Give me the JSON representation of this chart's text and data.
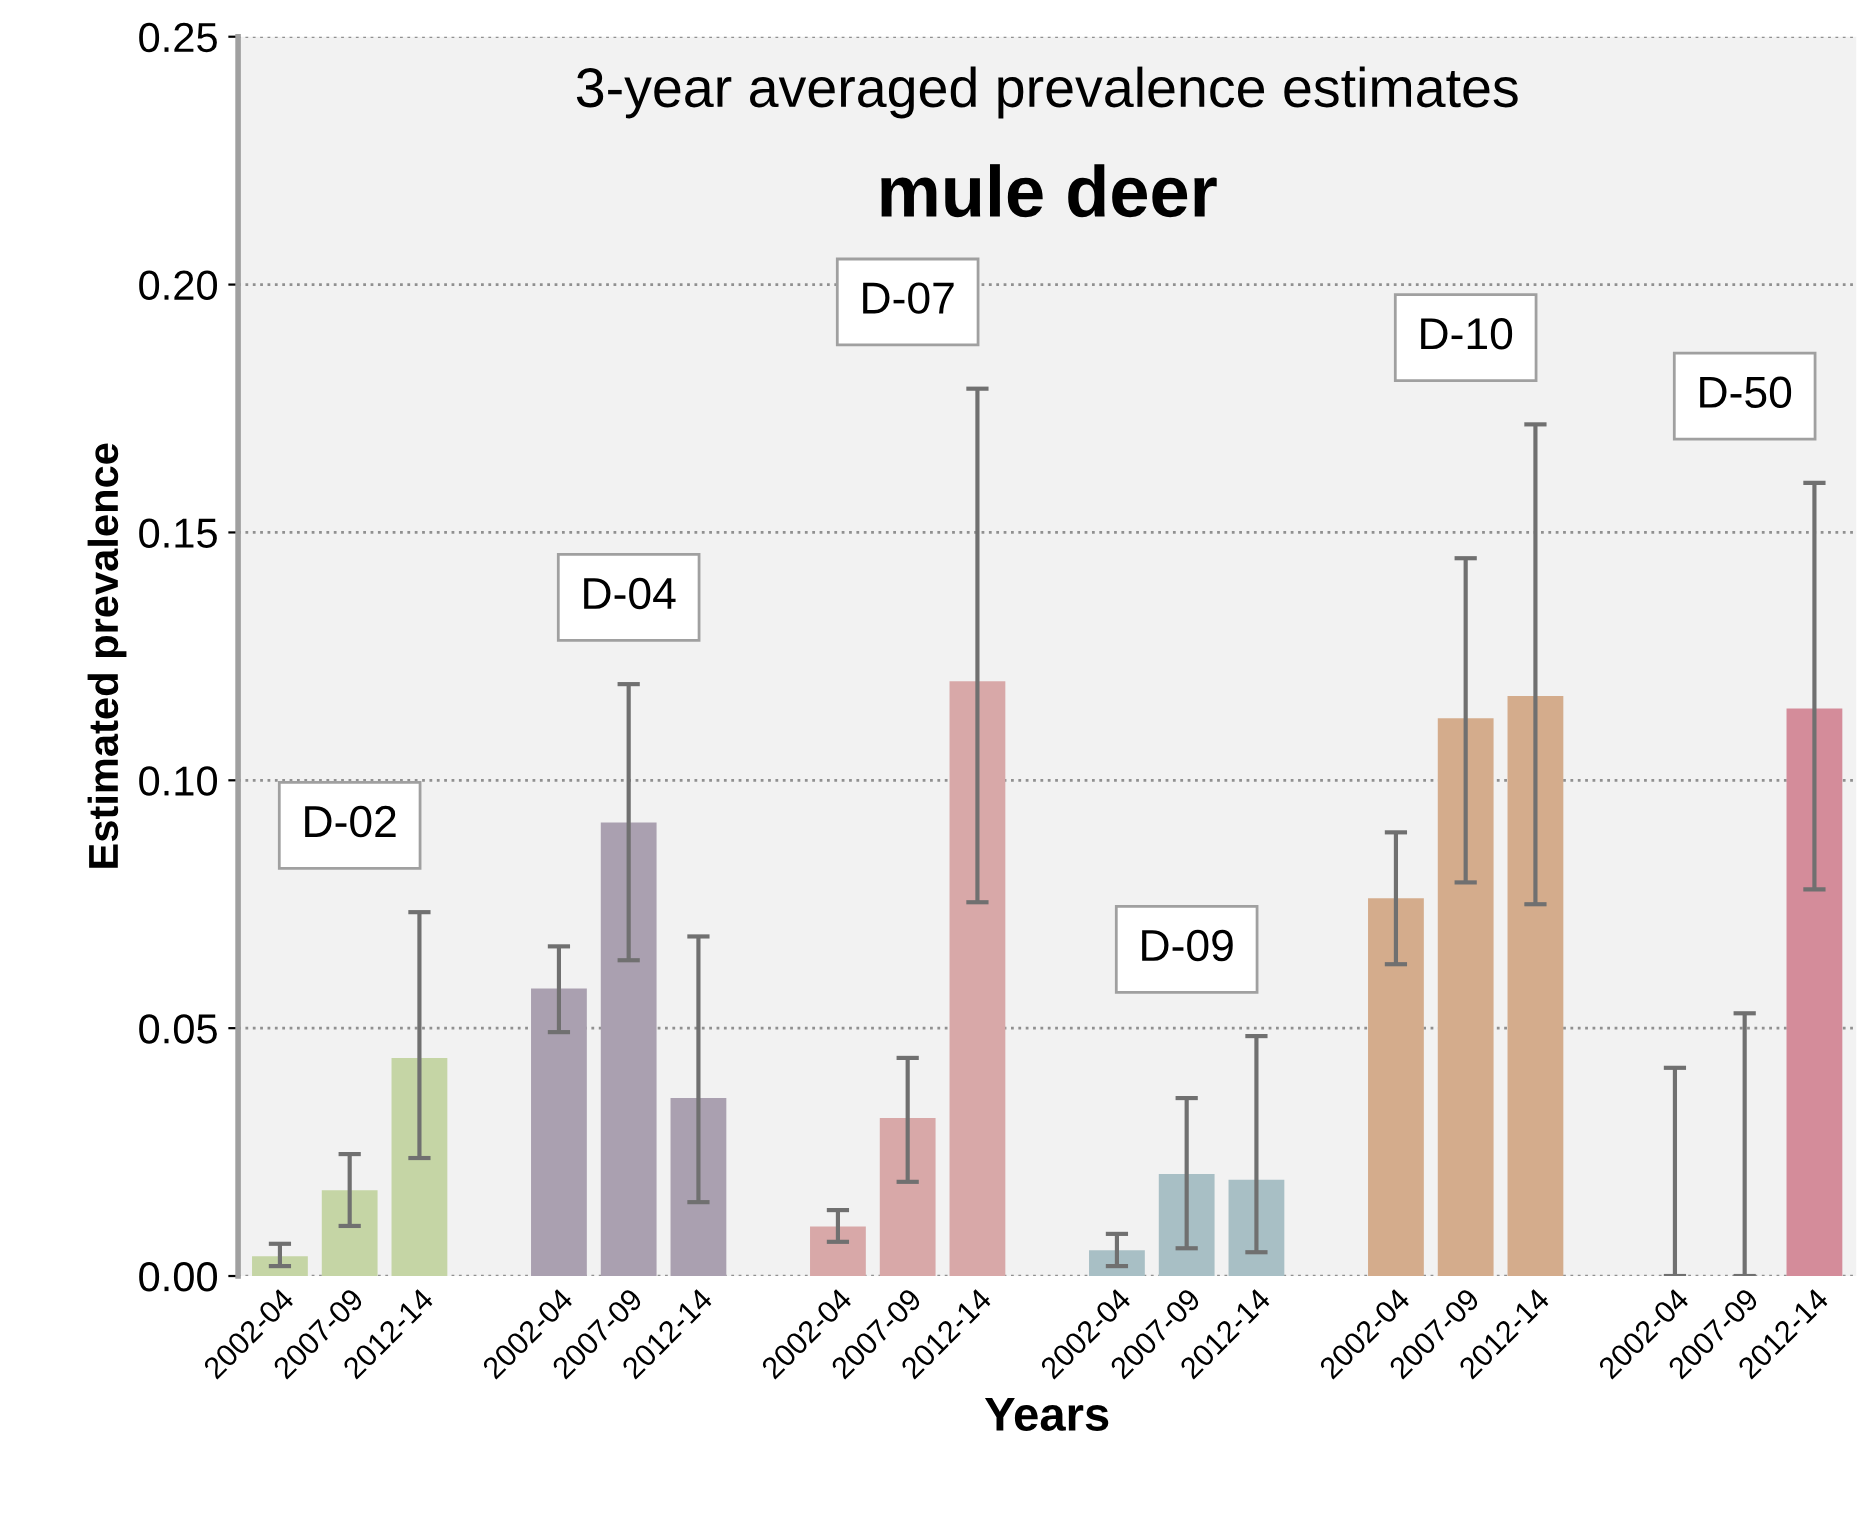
{
  "chart_data": {
    "type": "bar",
    "title": "3-year averaged prevalence estimates",
    "subtitle": "mule deer",
    "xlabel": "Years",
    "ylabel": "Estimated prevalence",
    "categories": [
      "2002-04",
      "2007-09",
      "2012-14",
      null,
      "2002-04",
      "2007-09",
      "2012-14",
      null,
      "2002-04",
      "2007-09",
      "2012-14",
      null,
      "2002-04",
      "2007-09",
      "2012-14",
      null,
      "2002-04",
      "2007-09",
      "2012-14",
      null,
      "2002-04",
      "2007-09",
      "2012-14"
    ],
    "values": [
      0.004,
      0.0173,
      0.044,
      null,
      0.058,
      0.0915,
      0.0359,
      null,
      0.01,
      0.0319,
      0.12,
      null,
      0.0052,
      0.0206,
      0.0194,
      null,
      0.0762,
      0.1125,
      0.117,
      null,
      0,
      0,
      0.1145
    ],
    "errors": [
      [
        0.002,
        0.0065
      ],
      [
        0.0101,
        0.0246
      ],
      [
        0.0238,
        0.0734
      ],
      null,
      [
        0.0492,
        0.0665
      ],
      [
        0.0637,
        0.1194
      ],
      [
        0.0149,
        0.0685
      ],
      null,
      [
        0.0069,
        0.0133
      ],
      [
        0.019,
        0.044
      ],
      [
        0.0754,
        0.179
      ],
      null,
      [
        0.002,
        0.0085
      ],
      [
        0.0056,
        0.0359
      ],
      [
        0.0048,
        0.0484
      ],
      null,
      [
        0.0629,
        0.0895
      ],
      [
        0.0794,
        0.1448
      ],
      [
        0.075,
        0.1718
      ],
      null,
      [
        0,
        0.042
      ],
      [
        0,
        0.053
      ],
      [
        0.078,
        0.16
      ]
    ],
    "colors": [
      "#c5d5a5",
      "#c5d5a5",
      "#c5d5a5",
      null,
      "#aaa0b0",
      "#aaa0b0",
      "#aaa0b0",
      null,
      "#d8a8a8",
      "#d8a8a8",
      "#d8a8a8",
      null,
      "#a8bfc5",
      "#a8bfc5",
      "#a8bfc5",
      null,
      "#d4ac8c",
      "#d4ac8c",
      "#d4ac8c",
      null,
      "#d48c9a",
      "#d48c9a",
      "#d48c9a"
    ],
    "annotations": [
      "D-02",
      "D-04",
      "D-07",
      "D-09",
      "D-10",
      "D-50"
    ],
    "ylim": [
      0,
      0.25
    ],
    "yticks": [
      {
        "value": 0,
        "label": "0.00"
      },
      {
        "value": 0.05,
        "label": "0.05"
      },
      {
        "value": 0.1,
        "label": "0.10"
      },
      {
        "value": 0.15,
        "label": "0.15"
      },
      {
        "value": 0.2,
        "label": "0.20"
      },
      {
        "value": 0.25,
        "label": "0.25"
      }
    ],
    "grid": "y",
    "legend": false
  }
}
